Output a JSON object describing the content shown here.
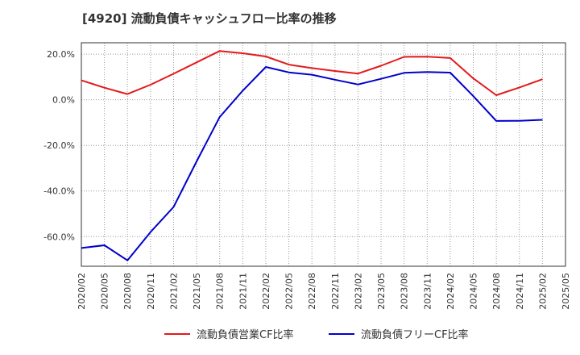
{
  "chart_data": {
    "type": "line",
    "title": "[4920]  流動負債キャッシュフロー比率の推移",
    "x": [
      "2020/02",
      "2020/05",
      "2020/08",
      "2020/11",
      "2021/02",
      "2021/05",
      "2021/08",
      "2021/11",
      "2022/02",
      "2022/05",
      "2022/08",
      "2022/11",
      "2023/02",
      "2023/05",
      "2023/08",
      "2023/11",
      "2024/02",
      "2024/05",
      "2024/08",
      "2024/11",
      "2025/02",
      "2025/05"
    ],
    "ylim": [
      -73,
      25
    ],
    "yticks": [
      20,
      0,
      -20,
      -40,
      -60
    ],
    "ytick_labels": [
      "20.0%",
      "0.0%",
      "-20.0%",
      "-40.0%",
      "-60.0%"
    ],
    "series": [
      {
        "name": "流動負債営業CF比率",
        "color": "#e31a1c",
        "values": [
          8.5,
          5.3,
          2.5,
          6.6,
          11.4,
          16.4,
          21.4,
          20.4,
          19.0,
          15.4,
          13.9,
          12.6,
          11.5,
          14.9,
          18.8,
          18.9,
          18.3,
          9.4,
          2.0,
          5.4,
          9.0,
          null
        ]
      },
      {
        "name": "流動負債フリーCF比率",
        "color": "#0000cc",
        "values": [
          -65.0,
          -63.8,
          -70.4,
          -58.0,
          -47.0,
          -27.0,
          -7.6,
          4.0,
          14.4,
          12.0,
          11.0,
          8.8,
          6.7,
          9.2,
          11.8,
          12.2,
          11.9,
          1.6,
          -9.3,
          -9.2,
          -8.8,
          null
        ]
      }
    ]
  }
}
